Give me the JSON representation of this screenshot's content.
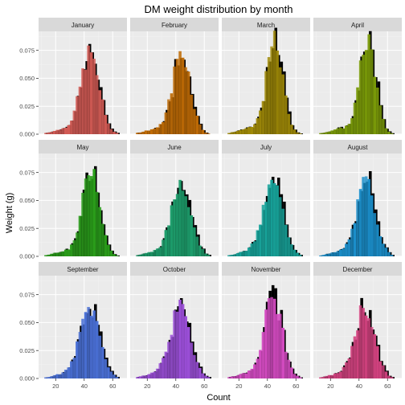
{
  "chart_data": {
    "type": "bar",
    "subtype": "faceted-histogram",
    "title": "DM weight distribution by month",
    "xlabel": "Count",
    "ylabel": "Weight (g)",
    "xlim": [
      8,
      70
    ],
    "ylim": [
      0,
      0.092
    ],
    "x_ticks": [
      "20",
      "40",
      "60"
    ],
    "x_tick_values": [
      20,
      40,
      60
    ],
    "y_ticks": [
      "0.000",
      "0.025",
      "0.050",
      "0.075"
    ],
    "y_tick_values": [
      0,
      0.025,
      0.05,
      0.075
    ],
    "grid": true,
    "legend": "none",
    "overlay_series_color": "#000000",
    "panel_background": "#ebebeb",
    "strip_background": "#d9d9d9",
    "facets": [
      {
        "month": "January",
        "color": "#D45B55",
        "peak_x": 44,
        "peak_y": 0.072,
        "spread": 6.5
      },
      {
        "month": "February",
        "color": "#BF6B05",
        "peak_x": 44,
        "peak_y": 0.075,
        "spread": 6.2
      },
      {
        "month": "March",
        "color": "#A08A07",
        "peak_x": 45,
        "peak_y": 0.082,
        "spread": 5.8
      },
      {
        "month": "April",
        "color": "#7A9A08",
        "peak_x": 46,
        "peak_y": 0.085,
        "spread": 5.6
      },
      {
        "month": "May",
        "color": "#2A9E1A",
        "peak_x": 45,
        "peak_y": 0.082,
        "spread": 5.9
      },
      {
        "month": "June",
        "color": "#1D9E6C",
        "peak_x": 44,
        "peak_y": 0.067,
        "spread": 6.8
      },
      {
        "month": "July",
        "color": "#17A39A",
        "peak_x": 44,
        "peak_y": 0.065,
        "spread": 7.0
      },
      {
        "month": "August",
        "color": "#1B8FCB",
        "peak_x": 45,
        "peak_y": 0.066,
        "spread": 6.6
      },
      {
        "month": "September",
        "color": "#4A70D6",
        "peak_x": 44,
        "peak_y": 0.063,
        "spread": 7.0
      },
      {
        "month": "October",
        "color": "#9B4FD8",
        "peak_x": 43,
        "peak_y": 0.062,
        "spread": 7.2
      },
      {
        "month": "November",
        "color": "#D54BC3",
        "peak_x": 44,
        "peak_y": 0.073,
        "spread": 6.4
      },
      {
        "month": "December",
        "color": "#D2427F",
        "peak_x": 44,
        "peak_y": 0.064,
        "spread": 6.8
      }
    ]
  }
}
